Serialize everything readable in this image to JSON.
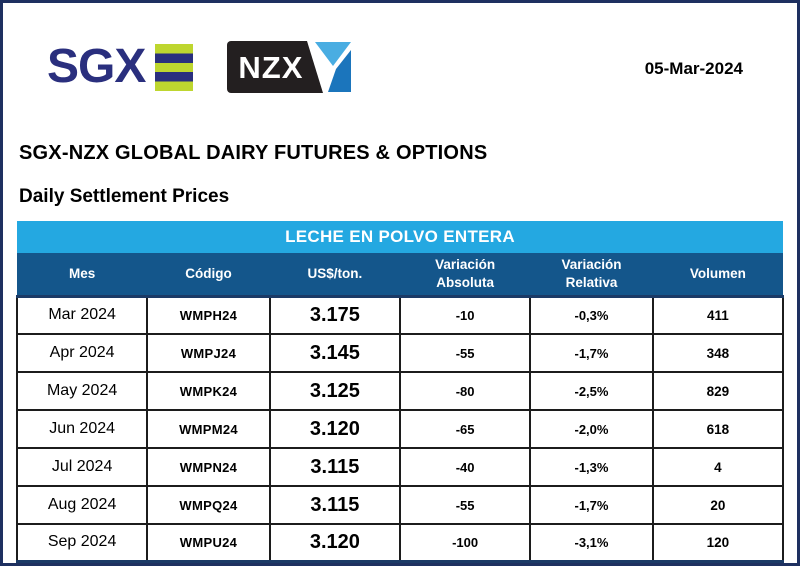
{
  "header": {
    "sgx_logo_text": "SGX",
    "nzx_logo_text": "NZX",
    "date": "05-Mar-2024"
  },
  "titles": {
    "main": "SGX-NZX GLOBAL DAIRY FUTURES & OPTIONS",
    "sub": "Daily Settlement Prices"
  },
  "table": {
    "title": "LECHE EN POLVO ENTERA",
    "columns": [
      "Mes",
      "Código",
      "US$/ton.",
      "Variación Absoluta",
      "Variación Relativa",
      "Volumen"
    ],
    "column_widths_pct": [
      17,
      16,
      17,
      17,
      16,
      17
    ],
    "rows": [
      [
        "Mar 2024",
        "WMPH24",
        "3.175",
        "-10",
        "-0,3%",
        "411"
      ],
      [
        "Apr 2024",
        "WMPJ24",
        "3.145",
        "-55",
        "-1,7%",
        "348"
      ],
      [
        "May 2024",
        "WMPK24",
        "3.125",
        "-80",
        "-2,5%",
        "829"
      ],
      [
        "Jun 2024",
        "WMPM24",
        "3.120",
        "-65",
        "-2,0%",
        "618"
      ],
      [
        "Jul 2024",
        "WMPN24",
        "3.115",
        "-40",
        "-1,3%",
        "4"
      ],
      [
        "Aug 2024",
        "WMPQ24",
        "3.115",
        "-55",
        "-1,7%",
        "20"
      ],
      [
        "Sep 2024",
        "WMPU24",
        "3.120",
        "-100",
        "-3,1%",
        "120"
      ]
    ]
  },
  "colors": {
    "page-border": "#1e3060",
    "sgx-navy": "#2a2f7e",
    "sgx-green": "#bed62f",
    "nzx-black": "#231f20",
    "nzx-light-blue": "#49ade2",
    "nzx-mid-blue": "#1b75bc",
    "table-title-bg": "#24a8e1",
    "table-header-bg": "#14568b",
    "table-accent-line": "#1b3a66",
    "grid-line": "#1c1c1c"
  }
}
